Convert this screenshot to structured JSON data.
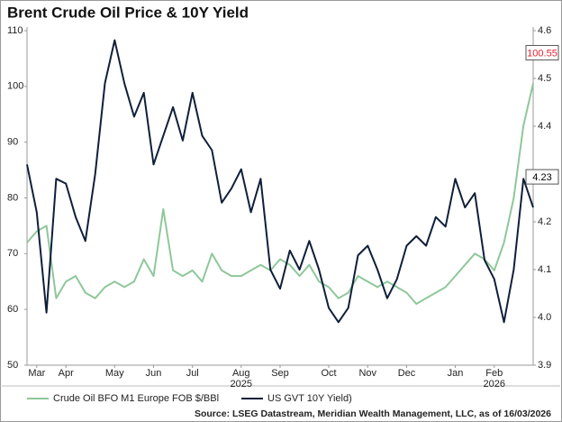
{
  "chart_data": {
    "type": "line",
    "title": "Brent Crude Oil Price & 10Y Yield",
    "source": "Source: LSEG Datastream, Meridian Wealth Management, LLC, as of 16/03/2026",
    "categories": [
      null,
      "Mar",
      null,
      null,
      "Apr",
      null,
      null,
      null,
      null,
      "May",
      null,
      null,
      null,
      "Jun",
      null,
      null,
      null,
      "Jul",
      null,
      null,
      null,
      null,
      "Aug",
      null,
      null,
      null,
      "Sep",
      null,
      null,
      null,
      null,
      "Oct",
      null,
      null,
      null,
      "Nov",
      null,
      null,
      null,
      "Dec",
      null,
      null,
      null,
      null,
      "Jan",
      null,
      null,
      null,
      "Feb",
      null,
      null,
      null,
      null
    ],
    "category_years": [
      null,
      null,
      null,
      null,
      null,
      null,
      null,
      null,
      null,
      null,
      null,
      null,
      null,
      null,
      null,
      null,
      null,
      null,
      null,
      null,
      null,
      null,
      "2025",
      null,
      null,
      null,
      null,
      null,
      null,
      null,
      null,
      null,
      null,
      null,
      null,
      null,
      null,
      null,
      null,
      null,
      null,
      null,
      null,
      null,
      null,
      null,
      null,
      null,
      "2026",
      null,
      null,
      null,
      null
    ],
    "series": [
      {
        "name": "Crude Oil BFO M1 Europe FOB $/BBl",
        "color": "#8fc79a",
        "axis": "y",
        "end_label_color": "#e8202a",
        "values": [
          72,
          74,
          75,
          62,
          65,
          66,
          63,
          62,
          64,
          65,
          64,
          65,
          69,
          66,
          78,
          67,
          66,
          67,
          65,
          70,
          67,
          66,
          66,
          67,
          68,
          67,
          69,
          68,
          66,
          68,
          65,
          64,
          62,
          63,
          66,
          65,
          64,
          65,
          64,
          63,
          61,
          62,
          63,
          64,
          66,
          68,
          70,
          69,
          67,
          72,
          80,
          93,
          100.55
        ]
      },
      {
        "name": "US GVT 10Y Yield)",
        "color": "#0f1f3a",
        "axis": "y2",
        "end_label_color": "#000000",
        "values": [
          4.32,
          4.22,
          4.01,
          4.29,
          4.28,
          4.21,
          4.16,
          4.3,
          4.49,
          4.58,
          4.49,
          4.42,
          4.47,
          4.32,
          4.38,
          4.44,
          4.37,
          4.47,
          4.38,
          4.35,
          4.24,
          4.27,
          4.31,
          4.22,
          4.29,
          4.1,
          4.06,
          4.14,
          4.1,
          4.16,
          4.1,
          4.02,
          3.99,
          4.02,
          4.13,
          4.15,
          4.1,
          4.04,
          4.08,
          4.15,
          4.17,
          4.15,
          4.21,
          4.19,
          4.29,
          4.23,
          4.26,
          4.12,
          4.08,
          3.99,
          4.1,
          4.29,
          4.23
        ]
      }
    ],
    "ylim": [
      50,
      110
    ],
    "yticks": [
      50,
      60,
      70,
      80,
      90,
      100,
      110
    ],
    "y2lim": [
      3.9,
      4.6
    ],
    "y2ticks": [
      3.9,
      {
        "value": 4.0,
        "label": "4.0"
      },
      4.1,
      4.2,
      4.3,
      4.4,
      4.5,
      4.6
    ],
    "grid": false,
    "end_labels": true,
    "legend": "bottom"
  }
}
